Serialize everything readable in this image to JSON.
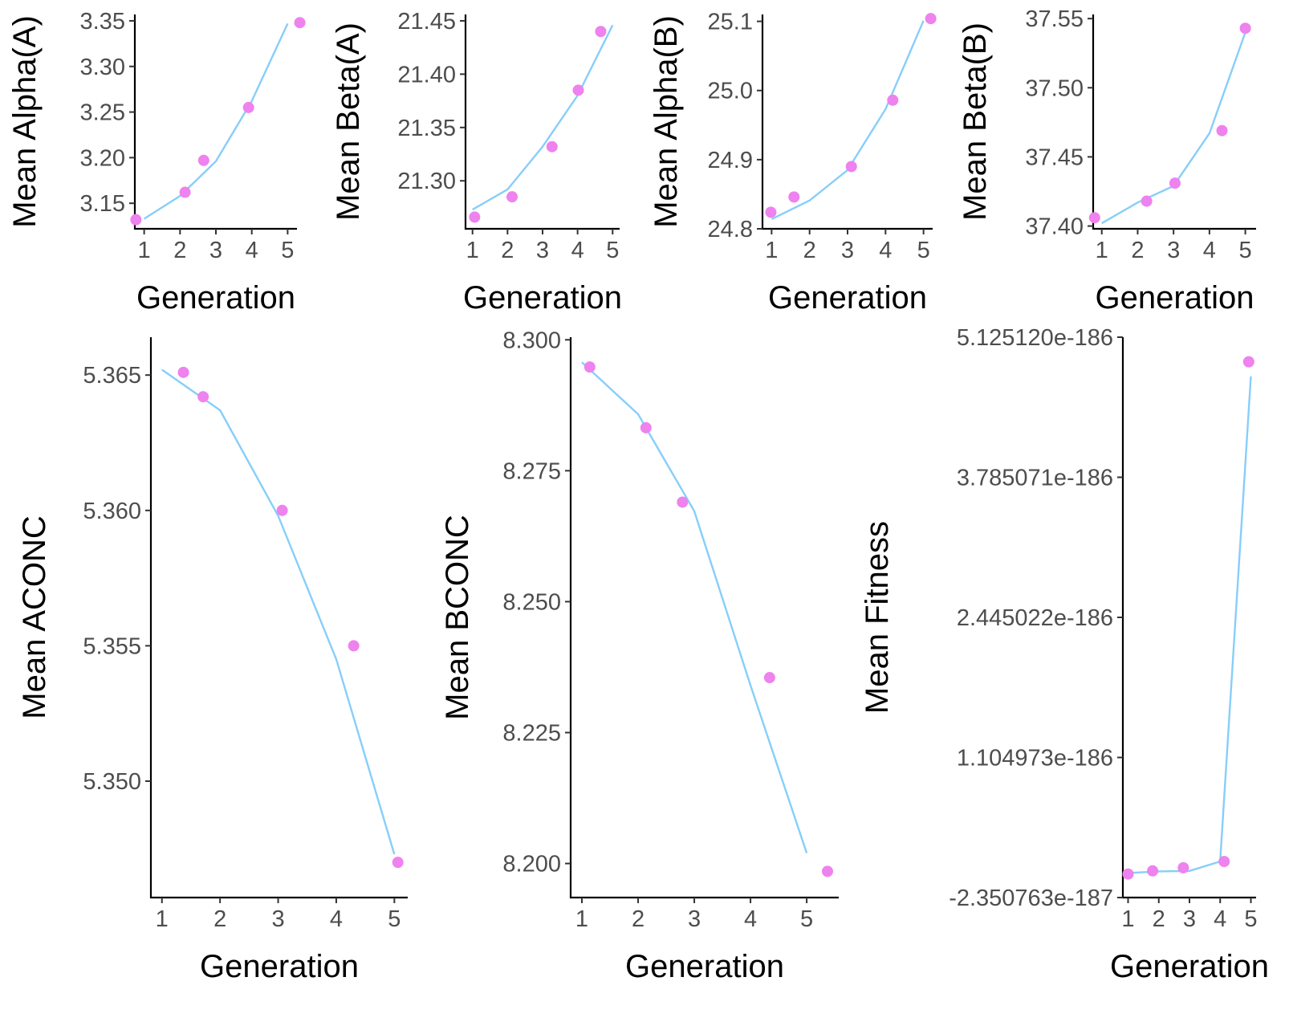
{
  "colors": {
    "point": "#EE82EE",
    "line": "#87CEFA",
    "axis": "#000000",
    "tick_text": "#4d4d4d"
  },
  "chart_data": [
    {
      "id": "alpha-a",
      "type": "scatter",
      "xlabel": "Generation",
      "ylabel": "Mean Alpha(A)",
      "xticks": [
        1,
        2,
        3,
        4,
        5
      ],
      "xlim": [
        0.74,
        5.26
      ],
      "yticks": [
        3.15,
        3.2,
        3.25,
        3.3,
        3.35
      ],
      "ytick_labels": [
        "3.15",
        "3.20",
        "3.25",
        "3.30",
        "3.35"
      ],
      "ylim": [
        3.122,
        3.357
      ],
      "series": [
        {
          "kind": "points",
          "x": [
            0.77,
            2.14,
            2.66,
            3.91,
            5.34
          ],
          "y": [
            3.132,
            3.162,
            3.197,
            3.255,
            3.348
          ]
        },
        {
          "kind": "line",
          "x": [
            1,
            2,
            3,
            4,
            5
          ],
          "y": [
            3.133,
            3.158,
            3.196,
            3.262,
            3.347
          ]
        }
      ]
    },
    {
      "id": "beta-a",
      "type": "scatter",
      "xlabel": "Generation",
      "ylabel": "Mean Beta(A)",
      "xticks": [
        1,
        2,
        3,
        4,
        5
      ],
      "xlim": [
        0.8,
        5.2
      ],
      "yticks": [
        21.3,
        21.35,
        21.4,
        21.45
      ],
      "ytick_labels": [
        "21.30",
        "21.35",
        "21.40",
        "21.45"
      ],
      "ylim": [
        21.255,
        21.456
      ],
      "series": [
        {
          "kind": "points",
          "x": [
            1.06,
            2.13,
            3.27,
            4.02,
            4.66
          ],
          "y": [
            21.266,
            21.285,
            21.332,
            21.385,
            21.44
          ]
        },
        {
          "kind": "line",
          "x": [
            1,
            2,
            3,
            4,
            5
          ],
          "y": [
            21.273,
            21.292,
            21.332,
            21.38,
            21.446
          ]
        }
      ]
    },
    {
      "id": "alpha-b",
      "type": "scatter",
      "xlabel": "Generation",
      "ylabel": "Mean Alpha(B)",
      "xticks": [
        1,
        2,
        3,
        4,
        5
      ],
      "xlim": [
        0.76,
        5.24
      ],
      "yticks": [
        24.8,
        24.9,
        25.0,
        25.1
      ],
      "ytick_labels": [
        "24.8",
        "24.9",
        "25.0",
        "25.1"
      ],
      "ylim": [
        24.8,
        25.11
      ],
      "series": [
        {
          "kind": "points",
          "x": [
            0.98,
            1.59,
            3.1,
            4.19,
            5.19
          ],
          "y": [
            24.824,
            24.846,
            24.89,
            24.986,
            25.104
          ]
        },
        {
          "kind": "line",
          "x": [
            1,
            2,
            3,
            4,
            5
          ],
          "y": [
            24.814,
            24.841,
            24.885,
            24.973,
            25.101
          ]
        }
      ]
    },
    {
      "id": "beta-b",
      "type": "scatter",
      "xlabel": "Generation",
      "ylabel": "Mean Beta(B)",
      "xticks": [
        1,
        2,
        3,
        4,
        5
      ],
      "xlim": [
        0.76,
        5.3
      ],
      "yticks": [
        37.4,
        37.45,
        37.5,
        37.55
      ],
      "ytick_labels": [
        "37.40",
        "37.45",
        "37.50",
        "37.55"
      ],
      "ylim": [
        37.398,
        37.553
      ],
      "series": [
        {
          "kind": "points",
          "x": [
            0.8,
            2.25,
            3.04,
            4.35,
            5.0
          ],
          "y": [
            37.406,
            37.418,
            37.431,
            37.469,
            37.543
          ]
        },
        {
          "kind": "line",
          "x": [
            1,
            2,
            3,
            4,
            5
          ],
          "y": [
            37.402,
            37.417,
            37.429,
            37.467,
            37.54
          ]
        }
      ]
    },
    {
      "id": "aconc",
      "type": "scatter",
      "xlabel": "Generation",
      "ylabel": "Mean ACONC",
      "xticks": [
        1,
        2,
        3,
        4,
        5
      ],
      "xlim": [
        0.81,
        5.23
      ],
      "yticks": [
        5.35,
        5.355,
        5.36,
        5.365
      ],
      "ytick_labels": [
        "5.350",
        "5.355",
        "5.360",
        "5.365"
      ],
      "ylim": [
        5.3457,
        5.3664
      ],
      "series": [
        {
          "kind": "points",
          "x": [
            1.37,
            1.71,
            3.07,
            4.3,
            5.06
          ],
          "y": [
            5.3651,
            5.3642,
            5.36,
            5.355,
            5.347
          ]
        },
        {
          "kind": "line",
          "x": [
            1,
            2,
            3,
            4,
            5
          ],
          "y": [
            5.3652,
            5.3637,
            5.3598,
            5.3545,
            5.3473
          ]
        }
      ]
    },
    {
      "id": "bconc",
      "type": "scatter",
      "xlabel": "Generation",
      "ylabel": "Mean BCONC",
      "xticks": [
        1,
        2,
        3,
        4,
        5
      ],
      "xlim": [
        0.8,
        5.57
      ],
      "yticks": [
        8.2,
        8.225,
        8.25,
        8.275,
        8.3
      ],
      "ytick_labels": [
        "8.200",
        "8.225",
        "8.250",
        "8.275",
        "8.300"
      ],
      "ylim": [
        8.1935,
        8.3005
      ],
      "series": [
        {
          "kind": "points",
          "x": [
            1.14,
            2.14,
            2.79,
            4.34,
            5.37
          ],
          "y": [
            8.2948,
            8.2832,
            8.269,
            8.2355,
            8.1985
          ]
        },
        {
          "kind": "line",
          "x": [
            1,
            2,
            3,
            4,
            5
          ],
          "y": [
            8.2957,
            8.2858,
            8.2673,
            8.234,
            8.202
          ]
        }
      ]
    },
    {
      "id": "fitness",
      "type": "scatter",
      "xlabel": "Generation",
      "ylabel": "Mean Fitness",
      "xticks": [
        1,
        2,
        3,
        4,
        5
      ],
      "xlim": [
        0.83,
        5.17
      ],
      "yticks": [
        -2.350763e-187,
        1.104973e-186,
        2.445022e-186,
        3.785071e-186,
        5.12512e-186
      ],
      "ytick_labels": [
        "-2.350763e-187",
        "1.104973e-186",
        "2.445022e-186",
        "3.785071e-186",
        "5.125120e-186"
      ],
      "ylim": [
        -2.350763e-187,
        5.12512e-186
      ],
      "series": [
        {
          "kind": "points",
          "x": [
            1.0,
            1.8,
            2.8,
            4.13,
            4.93
          ],
          "y": [
            -1e-188,
            2e-188,
            5e-188,
            1.1e-187,
            4.89e-186
          ]
        },
        {
          "kind": "line",
          "x": [
            1,
            2,
            3,
            4,
            5
          ],
          "y": [
            0,
            1.5e-188,
            2e-188,
            1.1e-187,
            4.75e-186
          ]
        }
      ]
    }
  ]
}
